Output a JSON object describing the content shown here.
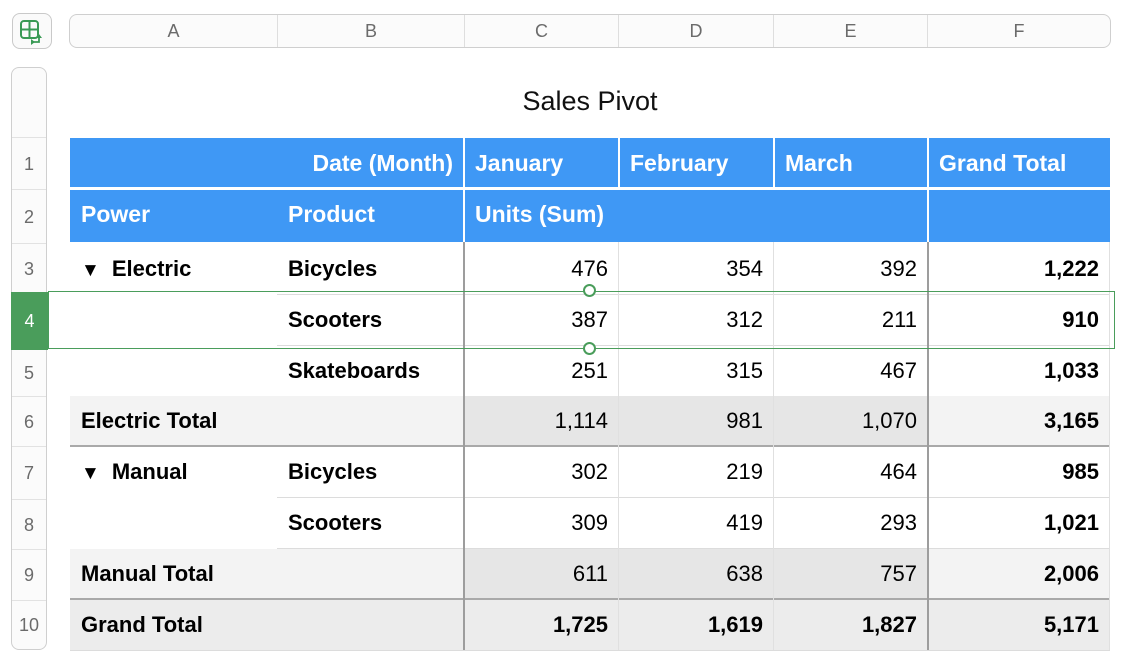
{
  "columns": [
    "A",
    "B",
    "C",
    "D",
    "E",
    "F"
  ],
  "rows": [
    "1",
    "2",
    "3",
    "4",
    "5",
    "6",
    "7",
    "8",
    "9",
    "10"
  ],
  "selected_row": "4",
  "table": {
    "title": "Sales Pivot",
    "header1": {
      "date_label": "Date (Month)",
      "jan": "January",
      "feb": "February",
      "mar": "March",
      "total": "Grand Total"
    },
    "header2": {
      "power": "Power",
      "product": "Product",
      "units": "Units (Sum)"
    },
    "groups": {
      "electric": {
        "label": "Electric",
        "rows": [
          {
            "product": "Bicycles",
            "jan": "476",
            "feb": "354",
            "mar": "392",
            "total": "1,222"
          },
          {
            "product": "Scooters",
            "jan": "387",
            "feb": "312",
            "mar": "211",
            "total": "910"
          },
          {
            "product": "Skateboards",
            "jan": "251",
            "feb": "315",
            "mar": "467",
            "total": "1,033"
          }
        ],
        "total_label": "Electric Total",
        "totals": {
          "jan": "1,114",
          "feb": "981",
          "mar": "1,070",
          "total": "3,165"
        }
      },
      "manual": {
        "label": "Manual",
        "rows": [
          {
            "product": "Bicycles",
            "jan": "302",
            "feb": "219",
            "mar": "464",
            "total": "985"
          },
          {
            "product": "Scooters",
            "jan": "309",
            "feb": "419",
            "mar": "293",
            "total": "1,021"
          }
        ],
        "total_label": "Manual Total",
        "totals": {
          "jan": "611",
          "feb": "638",
          "mar": "757",
          "total": "2,006"
        }
      }
    },
    "grand_total": {
      "label": "Grand Total",
      "jan": "1,725",
      "feb": "1,619",
      "mar": "1,827",
      "total": "5,171"
    },
    "disclosure_icon": "disclosure-triangle-down-icon"
  },
  "colors": {
    "header_blue": "#3f98f5",
    "selection_green": "#4a9d5b"
  }
}
